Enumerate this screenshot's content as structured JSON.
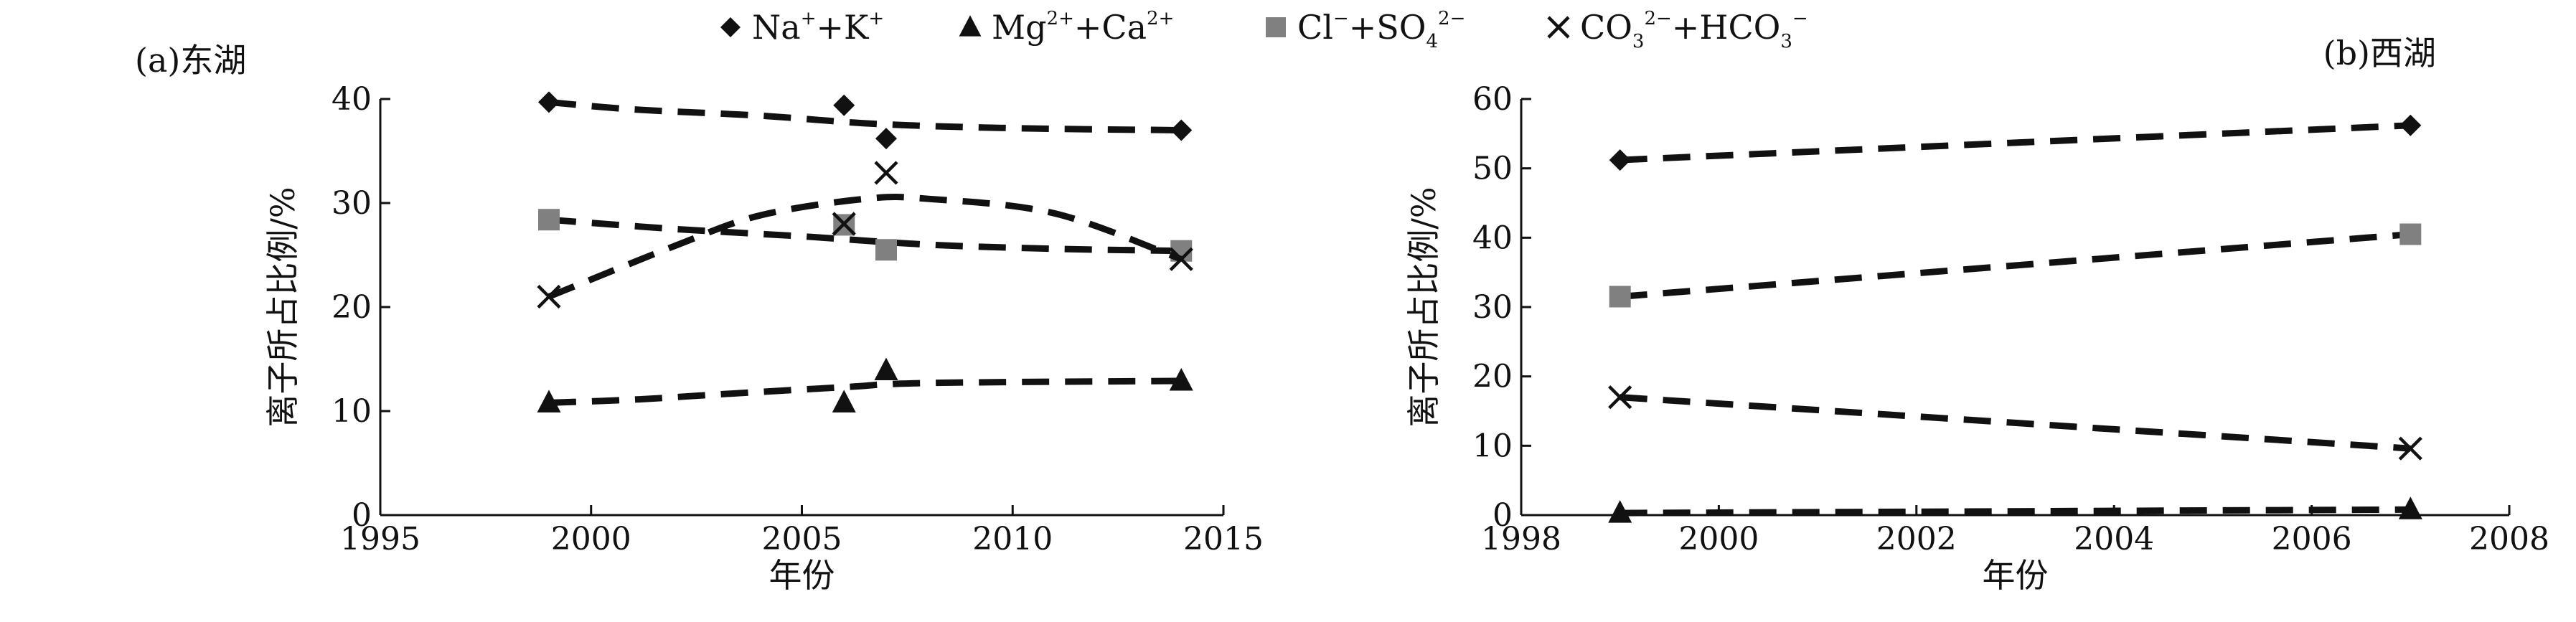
{
  "legend": [
    {
      "marker": "diamond",
      "label_main": "Na",
      "sup1": "+",
      "mid": "+K",
      "sup2": "+",
      "tail": ""
    },
    {
      "marker": "triangle",
      "label_main": "Mg",
      "sup1": "2+",
      "mid": "+Ca",
      "sup2": "2+",
      "tail": ""
    },
    {
      "marker": "square",
      "label_main": "Cl",
      "sup1": "−",
      "mid": "+SO",
      "sub": "4",
      "sup2": "2−",
      "tail": ""
    },
    {
      "marker": "cross",
      "label_main": "CO",
      "sub1": "3",
      "sup1": "2−",
      "mid": "+HCO",
      "sub": "3",
      "sup2": "−",
      "tail": ""
    }
  ],
  "colors": {
    "diamond": "#111111",
    "triangle": "#111111",
    "square": "#808080",
    "cross": "#111111",
    "line": "#111111",
    "axis": "#111111"
  },
  "chart_data": [
    {
      "type": "scatter",
      "title": "(a)东湖",
      "xlabel": "年份",
      "ylabel": "离子所占比例/%",
      "xlim": [
        1995,
        2015
      ],
      "ylim": [
        0,
        40
      ],
      "xticks": [
        1995,
        2000,
        2005,
        2010,
        2015
      ],
      "yticks": [
        0,
        10,
        20,
        30,
        40
      ],
      "series": [
        {
          "name": "Na⁺+K⁺",
          "marker": "diamond",
          "points": [
            [
              1999,
              39.7
            ],
            [
              2006,
              39.4
            ],
            [
              2007,
              36.2
            ],
            [
              2014,
              37.0
            ]
          ],
          "trend": [
            [
              1999,
              39.7
            ],
            [
              2001,
              39.0
            ],
            [
              2004,
              38.4
            ],
            [
              2006.8,
              37.6
            ],
            [
              2010,
              37.2
            ],
            [
              2014,
              37.0
            ]
          ]
        },
        {
          "name": "Mg²⁺+Ca²⁺",
          "marker": "triangle",
          "points": [
            [
              1999,
              10.8
            ],
            [
              2006,
              10.8
            ],
            [
              2007,
              13.9
            ],
            [
              2014,
              12.9
            ]
          ],
          "trend": [
            [
              1999,
              10.8
            ],
            [
              2001,
              11.1
            ],
            [
              2003,
              11.6
            ],
            [
              2006,
              12.3
            ],
            [
              2008,
              12.7
            ],
            [
              2014,
              12.9
            ]
          ]
        },
        {
          "name": "Cl⁻+SO₄²⁻",
          "marker": "square",
          "points": [
            [
              1999,
              28.4
            ],
            [
              2006,
              27.9
            ],
            [
              2007,
              25.5
            ],
            [
              2014,
              25.4
            ]
          ],
          "trend": [
            [
              1999,
              28.4
            ],
            [
              2002,
              27.5
            ],
            [
              2005,
              26.8
            ],
            [
              2008,
              26.0
            ],
            [
              2011,
              25.6
            ],
            [
              2014,
              25.4
            ]
          ]
        },
        {
          "name": "CO₃²⁻+HCO₃⁻",
          "marker": "cross",
          "points": [
            [
              1999,
              21.0
            ],
            [
              2006,
              28.0
            ],
            [
              2007,
              32.9
            ],
            [
              2014,
              24.6
            ]
          ],
          "trend": [
            [
              1999,
              21.0
            ],
            [
              2002,
              25.9
            ],
            [
              2004,
              28.8
            ],
            [
              2006.5,
              30.4
            ],
            [
              2008,
              30.4
            ],
            [
              2011,
              29.0
            ],
            [
              2014,
              24.6
            ]
          ]
        }
      ]
    },
    {
      "type": "scatter",
      "title": "(b)西湖",
      "xlabel": "年份",
      "ylabel": "离子所占比例/%",
      "xlim": [
        1998,
        2008
      ],
      "ylim": [
        0,
        60
      ],
      "xticks": [
        1998,
        2000,
        2002,
        2004,
        2006,
        2008
      ],
      "yticks": [
        0,
        10,
        20,
        30,
        40,
        50,
        60
      ],
      "series": [
        {
          "name": "Na⁺+K⁺",
          "marker": "diamond",
          "points": [
            [
              1999,
              51.2
            ],
            [
              2007,
              56.2
            ]
          ],
          "trend": [
            [
              1999,
              51.2
            ],
            [
              2007,
              56.2
            ]
          ]
        },
        {
          "name": "Mg²⁺+Ca²⁺",
          "marker": "triangle",
          "points": [
            [
              1999,
              0.3
            ],
            [
              2007,
              0.8
            ]
          ],
          "trend": [
            [
              1999,
              0.3
            ],
            [
              2007,
              0.8
            ]
          ]
        },
        {
          "name": "Cl⁻+SO₄²⁻",
          "marker": "square",
          "points": [
            [
              1999,
              31.5
            ],
            [
              2007,
              40.5
            ]
          ],
          "trend": [
            [
              1999,
              31.5
            ],
            [
              2007,
              40.5
            ]
          ]
        },
        {
          "name": "CO₃²⁻+HCO₃⁻",
          "marker": "cross",
          "points": [
            [
              1999,
              17.0
            ],
            [
              2007,
              9.6
            ]
          ],
          "trend": [
            [
              1999,
              17.0
            ],
            [
              2007,
              9.6
            ]
          ]
        }
      ]
    }
  ]
}
